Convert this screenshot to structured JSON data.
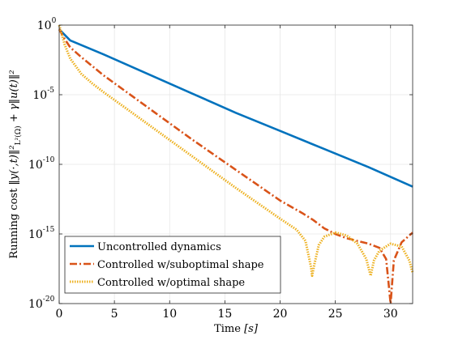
{
  "chart_data": {
    "type": "line",
    "title": "",
    "xlabel": "Time [s]",
    "xlabel_main": "Time ",
    "xlabel_unit": "[s]",
    "ylabel": "Running cost ‖y(·,t)‖²_L²(Ω) + γ‖u(t)‖²",
    "ylabel_main": "Running cost ",
    "ylabel_expr": "‖y(·,t)‖²",
    "ylabel_sub": "L²(Ω)",
    "ylabel_tail": " + γ‖u(t)‖²",
    "xlim": [
      0,
      32
    ],
    "ylim_log10": [
      -20,
      0
    ],
    "yscale": "log",
    "grid": true,
    "legend_position": "bottom-left",
    "x_ticks": [
      0,
      5,
      10,
      15,
      20,
      25,
      30
    ],
    "y_ticks": [
      {
        "base": "10",
        "exp": "0",
        "log": 0
      },
      {
        "base": "10",
        "exp": "-5",
        "log": -5
      },
      {
        "base": "10",
        "exp": "-10",
        "log": -10
      },
      {
        "base": "10",
        "exp": "-15",
        "log": -15
      },
      {
        "base": "10",
        "exp": "-20",
        "log": -20
      }
    ],
    "series": [
      {
        "name": "Uncontrolled dynamics",
        "color": "#0072BD",
        "style": "solid",
        "points": [
          [
            0,
            -0.3
          ],
          [
            1,
            -1.1
          ],
          [
            4,
            -2.1
          ],
          [
            8,
            -3.5
          ],
          [
            12,
            -4.9
          ],
          [
            16,
            -6.3
          ],
          [
            20,
            -7.6
          ],
          [
            24,
            -8.9
          ],
          [
            28,
            -10.2
          ],
          [
            32,
            -11.6
          ]
        ]
      },
      {
        "name": "Controlled w/suboptimal shape",
        "color": "#D95319",
        "style": "dashdot",
        "points": [
          [
            0,
            -0.3
          ],
          [
            0.5,
            -1.0
          ],
          [
            1,
            -1.6
          ],
          [
            2,
            -2.3
          ],
          [
            4,
            -3.6
          ],
          [
            8,
            -5.9
          ],
          [
            12,
            -8.2
          ],
          [
            16,
            -10.4
          ],
          [
            20,
            -12.6
          ],
          [
            22,
            -13.5
          ],
          [
            23,
            -14.0
          ],
          [
            24,
            -14.6
          ],
          [
            25,
            -15.0
          ],
          [
            26,
            -15.3
          ],
          [
            27,
            -15.5
          ],
          [
            28,
            -15.7
          ],
          [
            29,
            -16.0
          ],
          [
            29.6,
            -16.8
          ],
          [
            30.0,
            -20.0
          ],
          [
            30.3,
            -16.9
          ],
          [
            31,
            -15.6
          ],
          [
            32,
            -14.9
          ]
        ]
      },
      {
        "name": "Controlled w/optimal shape",
        "color": "#EDB120",
        "style": "dotted",
        "points": [
          [
            0,
            0
          ],
          [
            0.5,
            -1.4
          ],
          [
            1,
            -2.4
          ],
          [
            2,
            -3.5
          ],
          [
            3,
            -4.2
          ],
          [
            4,
            -4.8
          ],
          [
            8,
            -7.1
          ],
          [
            12,
            -9.4
          ],
          [
            16,
            -11.7
          ],
          [
            20,
            -13.9
          ],
          [
            21.5,
            -14.7
          ],
          [
            22.3,
            -15.5
          ],
          [
            22.8,
            -17.4
          ],
          [
            22.9,
            -18.0
          ],
          [
            23.1,
            -17.2
          ],
          [
            23.5,
            -15.8
          ],
          [
            24,
            -15.2
          ],
          [
            25,
            -14.9
          ],
          [
            26,
            -15.1
          ],
          [
            27,
            -15.7
          ],
          [
            27.8,
            -16.8
          ],
          [
            28.2,
            -18.0
          ],
          [
            28.5,
            -16.9
          ],
          [
            29,
            -16.2
          ],
          [
            30,
            -15.7
          ],
          [
            31,
            -15.9
          ],
          [
            31.7,
            -16.9
          ],
          [
            32,
            -17.8
          ]
        ]
      }
    ]
  }
}
